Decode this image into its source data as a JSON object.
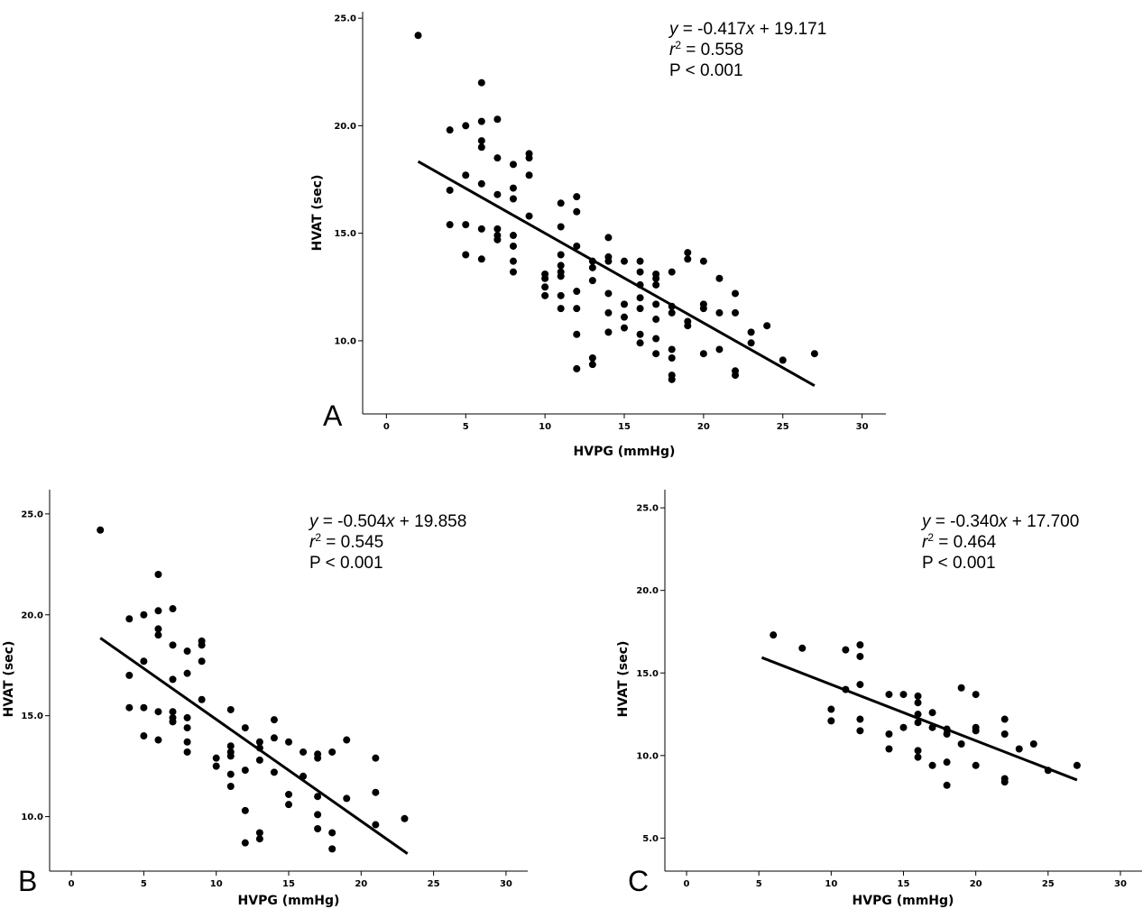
{
  "chart_data": [
    {
      "type": "scatter",
      "panel_label": "A",
      "xlabel": "HVPG (mmHg)",
      "ylabel": "HVAT (sec)",
      "xlim": [
        -1.5,
        31.5
      ],
      "ylim": [
        6.6,
        25.3
      ],
      "xticks": [
        0,
        5,
        10,
        15,
        20,
        25,
        30
      ],
      "yticks": [
        10.0,
        15.0,
        20.0,
        25.0
      ],
      "xtick_labels": [
        "0",
        "5",
        "10",
        "15",
        "20",
        "25",
        "30"
      ],
      "ytick_labels": [
        "10.0",
        "15.0",
        "20.0",
        "25.0"
      ],
      "annotation": {
        "eq_var": "y",
        "eq_rest": " = -0.417",
        "eq_x": "x",
        "eq_tail": " + 19.171",
        "r_label": "r",
        "r_sup": "2",
        "r_value": " = 0.558",
        "p_text": "P < 0.001"
      },
      "fit": {
        "slope": -0.417,
        "intercept": 19.171,
        "x_range": [
          2,
          27
        ]
      },
      "points": [
        [
          2,
          24.2
        ],
        [
          4,
          19.8
        ],
        [
          4,
          17.0
        ],
        [
          4,
          15.4
        ],
        [
          5,
          20.0
        ],
        [
          5,
          17.7
        ],
        [
          5,
          15.4
        ],
        [
          5,
          14.0
        ],
        [
          6,
          22.0
        ],
        [
          6,
          20.2
        ],
        [
          6,
          19.3
        ],
        [
          6,
          19.0
        ],
        [
          6,
          17.3
        ],
        [
          6,
          15.2
        ],
        [
          6,
          13.8
        ],
        [
          7,
          20.3
        ],
        [
          7,
          18.5
        ],
        [
          7,
          16.8
        ],
        [
          7,
          15.2
        ],
        [
          7,
          14.9
        ],
        [
          7,
          14.7
        ],
        [
          8,
          18.2
        ],
        [
          8,
          17.1
        ],
        [
          8,
          16.6
        ],
        [
          8,
          14.9
        ],
        [
          8,
          14.4
        ],
        [
          8,
          13.7
        ],
        [
          8,
          13.2
        ],
        [
          9,
          18.7
        ],
        [
          9,
          18.5
        ],
        [
          9,
          17.7
        ],
        [
          9,
          15.8
        ],
        [
          10,
          13.1
        ],
        [
          10,
          12.9
        ],
        [
          10,
          12.5
        ],
        [
          10,
          12.1
        ],
        [
          11,
          16.4
        ],
        [
          11,
          15.3
        ],
        [
          11,
          14.0
        ],
        [
          11,
          13.5
        ],
        [
          11,
          13.2
        ],
        [
          11,
          13.0
        ],
        [
          11,
          12.1
        ],
        [
          11,
          11.5
        ],
        [
          12,
          16.7
        ],
        [
          12,
          16.0
        ],
        [
          12,
          14.4
        ],
        [
          12,
          12.3
        ],
        [
          12,
          11.5
        ],
        [
          12,
          10.3
        ],
        [
          12,
          8.7
        ],
        [
          13,
          13.7
        ],
        [
          13,
          13.4
        ],
        [
          13,
          12.8
        ],
        [
          13,
          9.2
        ],
        [
          13,
          8.9
        ],
        [
          14,
          14.8
        ],
        [
          14,
          13.9
        ],
        [
          14,
          13.7
        ],
        [
          14,
          12.2
        ],
        [
          14,
          11.3
        ],
        [
          14,
          10.4
        ],
        [
          15,
          13.7
        ],
        [
          15,
          11.7
        ],
        [
          15,
          11.1
        ],
        [
          15,
          10.6
        ],
        [
          16,
          13.7
        ],
        [
          16,
          13.2
        ],
        [
          16,
          12.6
        ],
        [
          16,
          12.0
        ],
        [
          16,
          11.5
        ],
        [
          16,
          10.3
        ],
        [
          16,
          9.9
        ],
        [
          17,
          13.1
        ],
        [
          17,
          12.9
        ],
        [
          17,
          12.6
        ],
        [
          17,
          11.7
        ],
        [
          17,
          11.0
        ],
        [
          17,
          10.1
        ],
        [
          17,
          9.4
        ],
        [
          18,
          13.2
        ],
        [
          18,
          11.6
        ],
        [
          18,
          11.3
        ],
        [
          18,
          9.6
        ],
        [
          18,
          9.2
        ],
        [
          18,
          8.4
        ],
        [
          18,
          8.2
        ],
        [
          19,
          14.1
        ],
        [
          19,
          13.8
        ],
        [
          19,
          10.9
        ],
        [
          19,
          10.7
        ],
        [
          20,
          13.7
        ],
        [
          20,
          11.7
        ],
        [
          20,
          11.5
        ],
        [
          20,
          9.4
        ],
        [
          21,
          12.9
        ],
        [
          21,
          11.3
        ],
        [
          21,
          9.6
        ],
        [
          22,
          12.2
        ],
        [
          22,
          11.3
        ],
        [
          22,
          8.6
        ],
        [
          22,
          8.4
        ],
        [
          23,
          10.4
        ],
        [
          23,
          9.9
        ],
        [
          24,
          10.7
        ],
        [
          25,
          9.1
        ],
        [
          27,
          9.4
        ]
      ]
    },
    {
      "type": "scatter",
      "panel_label": "B",
      "xlabel": "HVPG (mmHg)",
      "ylabel": "HVAT (sec)",
      "xlim": [
        -1.5,
        31.5
      ],
      "ylim": [
        7.3,
        26.2
      ],
      "xticks": [
        0,
        5,
        10,
        15,
        20,
        25,
        30
      ],
      "yticks": [
        10.0,
        15.0,
        20.0,
        25.0
      ],
      "xtick_labels": [
        "0",
        "5",
        "10",
        "15",
        "20",
        "25",
        "30"
      ],
      "ytick_labels": [
        "10.0",
        "15.0",
        "20.0",
        "25.0"
      ],
      "annotation": {
        "eq_var": "y",
        "eq_rest": " = -0.504",
        "eq_x": "x",
        "eq_tail": " + 19.858",
        "r_label": "r",
        "r_sup": "2",
        "r_value": " = 0.545",
        "p_text": "P < 0.001"
      },
      "fit": {
        "slope": -0.504,
        "intercept": 19.858,
        "x_range": [
          2,
          23.2
        ]
      },
      "points": [
        [
          2,
          24.2
        ],
        [
          4,
          19.8
        ],
        [
          4,
          17.0
        ],
        [
          4,
          15.4
        ],
        [
          5,
          20.0
        ],
        [
          5,
          17.7
        ],
        [
          5,
          15.4
        ],
        [
          5,
          14.0
        ],
        [
          6,
          22.0
        ],
        [
          6,
          20.2
        ],
        [
          6,
          19.3
        ],
        [
          6,
          19.0
        ],
        [
          6,
          15.2
        ],
        [
          6,
          13.8
        ],
        [
          7,
          20.3
        ],
        [
          7,
          18.5
        ],
        [
          7,
          16.8
        ],
        [
          7,
          15.2
        ],
        [
          7,
          14.9
        ],
        [
          7,
          14.7
        ],
        [
          8,
          18.2
        ],
        [
          8,
          17.1
        ],
        [
          8,
          14.9
        ],
        [
          8,
          14.4
        ],
        [
          8,
          13.7
        ],
        [
          8,
          13.2
        ],
        [
          9,
          18.7
        ],
        [
          9,
          18.5
        ],
        [
          9,
          17.7
        ],
        [
          9,
          15.8
        ],
        [
          10,
          12.9
        ],
        [
          10,
          12.5
        ],
        [
          11,
          15.3
        ],
        [
          11,
          13.5
        ],
        [
          11,
          13.2
        ],
        [
          11,
          13.0
        ],
        [
          11,
          12.1
        ],
        [
          11,
          11.5
        ],
        [
          12,
          14.4
        ],
        [
          12,
          12.3
        ],
        [
          12,
          10.3
        ],
        [
          12,
          8.7
        ],
        [
          13,
          13.7
        ],
        [
          13,
          13.4
        ],
        [
          13,
          12.8
        ],
        [
          13,
          9.2
        ],
        [
          13,
          8.9
        ],
        [
          14,
          14.8
        ],
        [
          14,
          13.9
        ],
        [
          14,
          12.2
        ],
        [
          15,
          13.7
        ],
        [
          15,
          11.1
        ],
        [
          15,
          10.6
        ],
        [
          16,
          13.2
        ],
        [
          16,
          12.0
        ],
        [
          17,
          13.1
        ],
        [
          17,
          12.9
        ],
        [
          17,
          11.0
        ],
        [
          17,
          10.1
        ],
        [
          17,
          9.4
        ],
        [
          18,
          13.2
        ],
        [
          18,
          9.2
        ],
        [
          18,
          8.4
        ],
        [
          19,
          13.8
        ],
        [
          19,
          10.9
        ],
        [
          21,
          12.9
        ],
        [
          21,
          11.2
        ],
        [
          21,
          9.6
        ],
        [
          23,
          9.9
        ]
      ]
    },
    {
      "type": "scatter",
      "panel_label": "C",
      "xlabel": "HVPG (mmHg)",
      "ylabel": "HVAT (sec)",
      "xlim": [
        -1.5,
        31.5
      ],
      "ylim": [
        3.0,
        26.1
      ],
      "xticks": [
        0,
        5,
        10,
        15,
        20,
        25,
        30
      ],
      "yticks": [
        5.0,
        10.0,
        15.0,
        20.0,
        25.0
      ],
      "xtick_labels": [
        "0",
        "5",
        "10",
        "15",
        "20",
        "25",
        "30"
      ],
      "ytick_labels": [
        "5.0",
        "10.0",
        "15.0",
        "20.0",
        "25.0"
      ],
      "annotation": {
        "eq_var": "y",
        "eq_rest": " = -0.340",
        "eq_x": "x",
        "eq_tail": " + 17.700",
        "r_label": "r",
        "r_sup": "2",
        "r_value": " = 0.464",
        "p_text": "P < 0.001"
      },
      "fit": {
        "slope": -0.34,
        "intercept": 17.7,
        "x_range": [
          5.2,
          27
        ]
      },
      "points": [
        [
          6,
          17.3
        ],
        [
          8,
          16.5
        ],
        [
          10,
          12.8
        ],
        [
          10,
          12.1
        ],
        [
          11,
          16.4
        ],
        [
          11,
          14.0
        ],
        [
          12,
          16.7
        ],
        [
          12,
          16.0
        ],
        [
          12,
          14.3
        ],
        [
          12,
          12.2
        ],
        [
          12,
          11.5
        ],
        [
          14,
          13.7
        ],
        [
          14,
          11.3
        ],
        [
          14,
          10.4
        ],
        [
          15,
          13.7
        ],
        [
          15,
          11.7
        ],
        [
          16,
          13.6
        ],
        [
          16,
          13.2
        ],
        [
          16,
          12.5
        ],
        [
          16,
          12.0
        ],
        [
          16,
          10.3
        ],
        [
          16,
          9.9
        ],
        [
          17,
          12.6
        ],
        [
          17,
          11.7
        ],
        [
          17,
          9.4
        ],
        [
          18,
          11.6
        ],
        [
          18,
          11.3
        ],
        [
          18,
          9.6
        ],
        [
          18,
          8.2
        ],
        [
          19,
          14.1
        ],
        [
          19,
          10.7
        ],
        [
          20,
          13.7
        ],
        [
          20,
          11.7
        ],
        [
          20,
          11.5
        ],
        [
          20,
          9.4
        ],
        [
          22,
          12.2
        ],
        [
          22,
          11.3
        ],
        [
          22,
          8.6
        ],
        [
          22,
          8.4
        ],
        [
          23,
          10.4
        ],
        [
          24,
          10.7
        ],
        [
          25,
          9.1
        ],
        [
          27,
          9.4
        ]
      ]
    }
  ]
}
